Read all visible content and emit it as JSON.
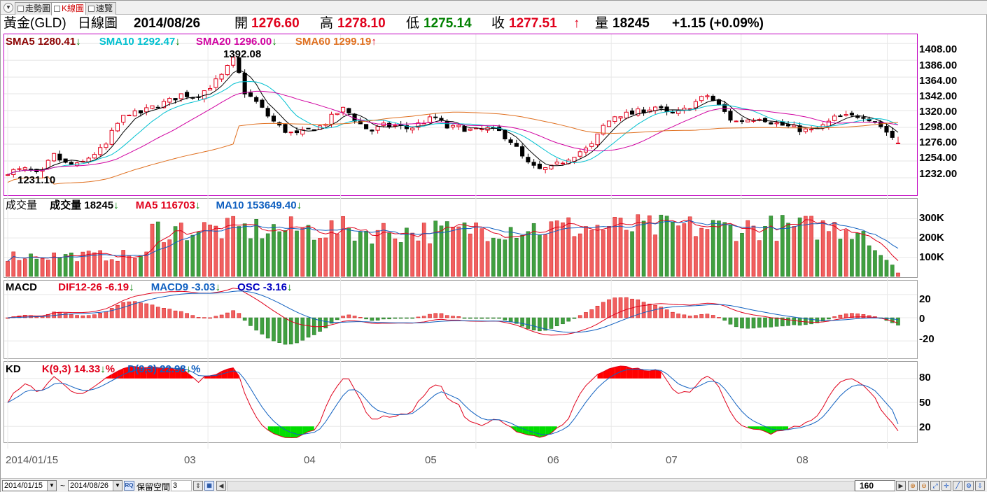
{
  "tabs": [
    {
      "label": "走勢圖",
      "active": false
    },
    {
      "label": "K線圖",
      "active": true
    },
    {
      "label": "速覽",
      "active": false
    }
  ],
  "header": {
    "name": "黃金(GLD)",
    "period": "日線圖",
    "date": "2014/08/26",
    "open_label": "開",
    "open": "1276.60",
    "high_label": "高",
    "high": "1278.10",
    "low_label": "低",
    "low": "1275.14",
    "close_label": "收",
    "close": "1277.51",
    "close_arrow": "↑",
    "vol_label": "量",
    "vol": "18245",
    "change": "+1.15 (+0.09%)"
  },
  "price_pane": {
    "legend": [
      {
        "label": "SMA5 1280.41",
        "arrow": "↓",
        "color": "#8b0000",
        "arrow_color": "#008000"
      },
      {
        "label": "SMA10 1292.47",
        "arrow": "↓",
        "color": "#00c0d0",
        "arrow_color": "#008000"
      },
      {
        "label": "SMA20 1296.00",
        "arrow": "↓",
        "color": "#d000a0",
        "arrow_color": "#008000"
      },
      {
        "label": "SMA60 1299.19",
        "arrow": "↑",
        "color": "#e07020",
        "arrow_color": "#e0001b"
      }
    ],
    "max_annotation": "1392.08",
    "min_annotation": "1231.10"
  },
  "volume_pane": {
    "title": "成交量",
    "legend": [
      {
        "label": "成交量 18245",
        "arrow": "↓",
        "color": "#000000",
        "arrow_color": "#008000"
      },
      {
        "label": "MA5 116703",
        "arrow": "↓",
        "color": "#e0001b",
        "arrow_color": "#008000"
      },
      {
        "label": "MA10 153649.40",
        "arrow": "↓",
        "color": "#1060c0",
        "arrow_color": "#008000"
      }
    ]
  },
  "macd_pane": {
    "title": "MACD",
    "legend": [
      {
        "label": "DIF12-26 -6.19",
        "arrow": "↓",
        "color": "#e0001b",
        "arrow_color": "#008000"
      },
      {
        "label": "MACD9 -3.03",
        "arrow": "↓",
        "color": "#1060c0",
        "arrow_color": "#008000"
      },
      {
        "label": "OSC -3.16",
        "arrow": "↓",
        "color": "#0000c0",
        "arrow_color": "#008000"
      }
    ]
  },
  "kd_pane": {
    "title": "KD",
    "legend": [
      {
        "label": "K(9,3) 14.33",
        "arrow": "↓",
        "color": "#e0001b",
        "arrow_color": "#008000",
        "suffix": "%"
      },
      {
        "label": "D(9,3) 22.98",
        "arrow": "↓",
        "color": "#1060c0",
        "arrow_color": "#008000",
        "suffix": "%"
      }
    ]
  },
  "x_labels": [
    "2014/01/15",
    "03",
    "04",
    "05",
    "06",
    "07",
    "08"
  ],
  "bottom_bar": {
    "from_date": "2014/01/15",
    "tilde": "~",
    "to_date": "2014/08/26",
    "space_label": "保留空間",
    "space_value": "3",
    "zoom_value": "160"
  },
  "chart_data": [
    {
      "id": "price",
      "type": "candlestick",
      "ylim": [
        1210,
        1420
      ],
      "yticks": [
        1408,
        1386,
        1364,
        1342,
        1320,
        1298,
        1276,
        1254,
        1232
      ],
      "tick_labels": [
        "1408.00",
        "1386.00",
        "1364.00",
        "1342.00",
        "1320.00",
        "1298.00",
        "1276.00",
        "1254.00",
        "1232.00"
      ],
      "n_bars": 155,
      "max": 1392.08,
      "min": 1231.1,
      "anchors": [
        [
          0,
          1240
        ],
        [
          6,
          1243
        ],
        [
          10,
          1234
        ],
        [
          14,
          1262
        ],
        [
          18,
          1250
        ],
        [
          22,
          1248
        ],
        [
          26,
          1262
        ],
        [
          30,
          1272
        ],
        [
          33,
          1298
        ],
        [
          37,
          1318
        ],
        [
          40,
          1315
        ],
        [
          45,
          1325
        ],
        [
          50,
          1333
        ],
        [
          54,
          1342
        ],
        [
          58,
          1338
        ],
        [
          62,
          1350
        ],
        [
          66,
          1365
        ],
        [
          70,
          1389
        ],
        [
          73,
          1345
        ],
        [
          77,
          1330
        ],
        [
          81,
          1310
        ],
        [
          85,
          1295
        ],
        [
          89,
          1288
        ],
        [
          93,
          1295
        ],
        [
          97,
          1300
        ],
        [
          101,
          1315
        ],
        [
          104,
          1323
        ],
        [
          108,
          1305
        ],
        [
          112,
          1293
        ],
        [
          116,
          1300
        ],
        [
          120,
          1300
        ],
        [
          124,
          1296
        ],
        [
          128,
          1305
        ],
        [
          132,
          1311
        ],
        [
          136,
          1297
        ],
        [
          140,
          1298
        ],
        [
          144,
          1293
        ],
        [
          148,
          1296
        ],
        [
          152,
          1292
        ],
        [
          156,
          1278
        ],
        [
          160,
          1252
        ],
        [
          164,
          1242
        ],
        [
          168,
          1245
        ],
        [
          172,
          1255
        ],
        [
          176,
          1265
        ],
        [
          180,
          1272
        ],
        [
          184,
          1300
        ],
        [
          188,
          1315
        ],
        [
          192,
          1315
        ],
        [
          196,
          1320
        ],
        [
          200,
          1325
        ],
        [
          204,
          1315
        ],
        [
          208,
          1318
        ],
        [
          212,
          1330
        ],
        [
          216,
          1340
        ],
        [
          220,
          1325
        ],
        [
          224,
          1305
        ],
        [
          228,
          1308
        ],
        [
          232,
          1312
        ],
        [
          236,
          1305
        ],
        [
          240,
          1300
        ],
        [
          244,
          1296
        ],
        [
          248,
          1293
        ],
        [
          252,
          1300
        ],
        [
          256,
          1312
        ],
        [
          260,
          1312
        ],
        [
          264,
          1314
        ],
        [
          268,
          1306
        ],
        [
          272,
          1290
        ],
        [
          275,
          1278
        ]
      ]
    },
    {
      "id": "volume",
      "type": "bar",
      "ylim": [
        0,
        400000
      ],
      "yticks": [
        300000,
        200000,
        100000
      ],
      "tick_labels": [
        "300K",
        "200K",
        "100K"
      ],
      "last_value": 18245
    },
    {
      "id": "macd",
      "type": "bar+line",
      "ylim": [
        -35,
        32
      ],
      "yticks": [
        20,
        0,
        -20
      ],
      "tick_labels": [
        "20",
        "0",
        "-20"
      ],
      "dif": -6.19,
      "macd9": -3.03,
      "osc": -3.16
    },
    {
      "id": "kd",
      "type": "line",
      "ylim": [
        0,
        100
      ],
      "yticks": [
        80,
        50,
        20
      ],
      "tick_labels": [
        "80",
        "50",
        "20"
      ],
      "k": 14.33,
      "d": 22.98
    }
  ]
}
